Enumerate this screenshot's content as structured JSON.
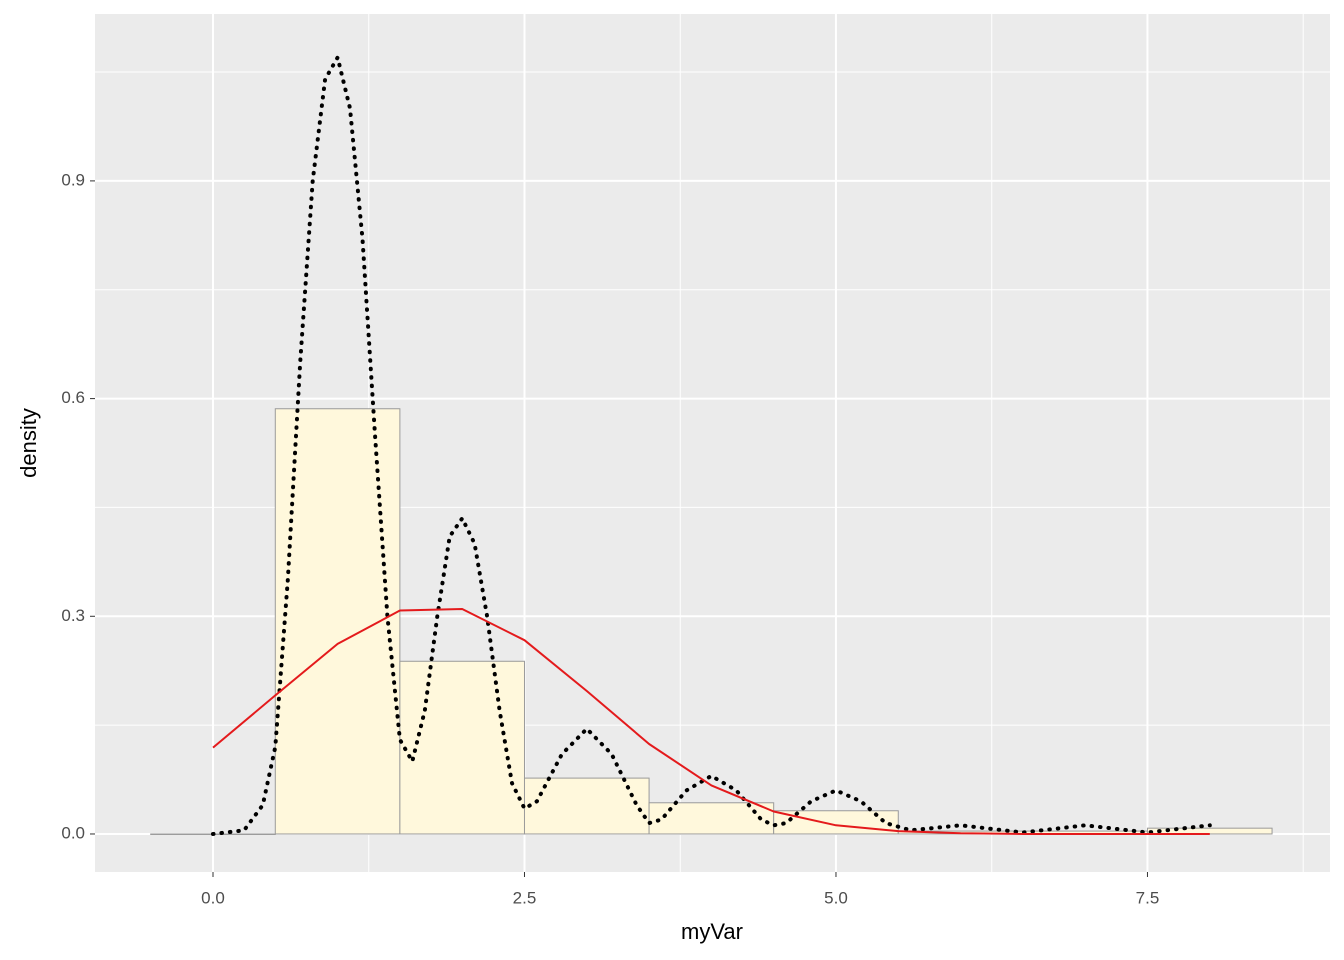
{
  "chart_data": {
    "type": "histogram",
    "x_label": "myVar",
    "y_label": "density",
    "bins": [
      -0.5,
      0.5,
      1.5,
      2.5,
      3.5,
      4.5,
      5.5,
      6.5,
      7.5,
      8.5
    ],
    "values": [
      0,
      0.586,
      0.238,
      0.077,
      0.043,
      0.032,
      0.004,
      0.004,
      0.008
    ],
    "color": "#fff8dc",
    "edge_color": "#9a9a9a",
    "xlim": [
      -0.947,
      8.965
    ],
    "ylim": [
      -0.0524,
      1.13
    ],
    "xticks": [
      {
        "value": 0,
        "label": "0.0"
      },
      2.5,
      {
        "value": 5,
        "label": "5.0"
      },
      7.5
    ],
    "yticks": [
      {
        "value": 0,
        "label": "0.0"
      },
      0.3,
      0.6,
      0.9
    ],
    "grid": true,
    "curves": [
      {
        "color": "#000000",
        "style": "dotted",
        "x": [
          0,
          0.25,
          0.4,
          0.5,
          0.6,
          0.7,
          0.8,
          0.9,
          1.0,
          1.1,
          1.2,
          1.3,
          1.4,
          1.5,
          1.6,
          1.7,
          1.8,
          1.9,
          2.0,
          2.1,
          2.2,
          2.3,
          2.4,
          2.5,
          2.6,
          2.8,
          3.0,
          3.2,
          3.4,
          3.5,
          3.6,
          3.8,
          4.0,
          4.2,
          4.4,
          4.5,
          4.6,
          4.8,
          5.0,
          5.2,
          5.4,
          5.6,
          6.0,
          6.5,
          7.0,
          7.5,
          8.0
        ],
        "y": [
          0,
          0.005,
          0.04,
          0.12,
          0.35,
          0.65,
          0.9,
          1.04,
          1.07,
          1.0,
          0.82,
          0.55,
          0.3,
          0.13,
          0.1,
          0.17,
          0.3,
          0.41,
          0.435,
          0.4,
          0.3,
          0.17,
          0.07,
          0.035,
          0.045,
          0.11,
          0.145,
          0.11,
          0.04,
          0.015,
          0.02,
          0.06,
          0.08,
          0.06,
          0.02,
          0.012,
          0.015,
          0.045,
          0.06,
          0.045,
          0.015,
          0.005,
          0.012,
          0.002,
          0.012,
          0.002,
          0.012
        ]
      },
      {
        "color": "#e41a1c",
        "style": "solid",
        "x": [
          0,
          0.5,
          1.0,
          1.5,
          2.0,
          2.5,
          3.0,
          3.5,
          4.0,
          4.5,
          5.0,
          5.5,
          6.0,
          6.5,
          7.0,
          7.5,
          8.0
        ],
        "y": [
          0.119,
          0.191,
          0.262,
          0.308,
          0.31,
          0.267,
          0.197,
          0.124,
          0.067,
          0.031,
          0.012,
          0.004,
          0.001,
          0,
          0,
          0,
          0
        ]
      }
    ]
  }
}
